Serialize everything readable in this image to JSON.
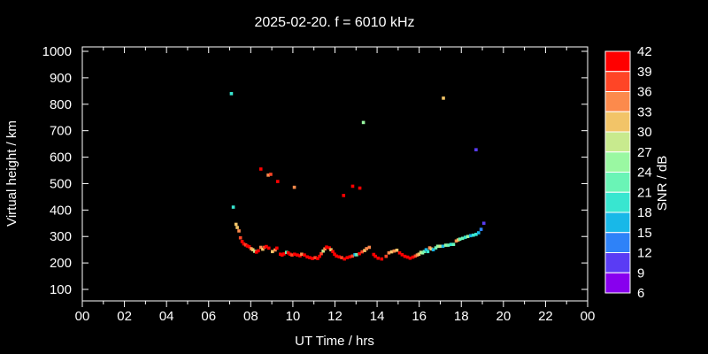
{
  "chart_data": {
    "type": "scatter",
    "title": "2025-02-20. f = 6010 kHz",
    "xlabel": "UT Time / hrs",
    "ylabel": "Virtual height / km",
    "xlim": [
      0,
      24
    ],
    "ylim": [
      100,
      1000
    ],
    "grid": false,
    "x_major_tick_hours": [
      0,
      2,
      4,
      6,
      8,
      10,
      12,
      14,
      16,
      18,
      20,
      22,
      24
    ],
    "x_major_tick_labels": [
      "00",
      "02",
      "04",
      "06",
      "08",
      "10",
      "12",
      "14",
      "16",
      "18",
      "20",
      "22",
      "00"
    ],
    "x_minor_step_hours": 1,
    "y_tick_km": [
      100,
      200,
      300,
      400,
      500,
      600,
      700,
      800,
      900,
      1000
    ],
    "y_tick_labels": [
      "100",
      "200",
      "300",
      "400",
      "500",
      "600",
      "700",
      "800",
      "900",
      "1000"
    ],
    "colorbar": {
      "label": "SNR / dB",
      "min": 6,
      "max": 42,
      "step": 3,
      "tick_labels_top_to_bottom": [
        "42",
        "39",
        "36",
        "33",
        "30",
        "27",
        "24",
        "21",
        "18",
        "15",
        "12",
        "9",
        "6"
      ],
      "bin_colors_low_to_high": [
        "#8800ee",
        "#5a3cf4",
        "#2e82f8",
        "#18b8e8",
        "#38e6d0",
        "#6af4b6",
        "#9af8a2",
        "#c8ea8e",
        "#f2c468",
        "#fc8a4c",
        "#ff4526",
        "#ff0000"
      ]
    },
    "points_format": [
      "ut_hours",
      "virtual_height_km",
      "snr_db"
    ],
    "points": [
      [
        7.08,
        840,
        20
      ],
      [
        17.15,
        823,
        31
      ],
      [
        13.35,
        731,
        25
      ],
      [
        18.7,
        628,
        11
      ],
      [
        8.48,
        555,
        40
      ],
      [
        8.83,
        532,
        35
      ],
      [
        8.95,
        535,
        38
      ],
      [
        9.28,
        508,
        40
      ],
      [
        10.07,
        486,
        34
      ],
      [
        12.41,
        455,
        40
      ],
      [
        12.84,
        490,
        41
      ],
      [
        13.18,
        483,
        40
      ],
      [
        7.17,
        411,
        19
      ],
      [
        7.3,
        346,
        31
      ],
      [
        7.36,
        334,
        31
      ],
      [
        7.44,
        321,
        34
      ],
      [
        7.51,
        295,
        37
      ],
      [
        7.59,
        281,
        40
      ],
      [
        7.67,
        272,
        41
      ],
      [
        7.76,
        268,
        38
      ],
      [
        7.84,
        264,
        40
      ],
      [
        7.93,
        261,
        39
      ],
      [
        8.02,
        254,
        35
      ],
      [
        8.1,
        250,
        31
      ],
      [
        8.19,
        244,
        28
      ],
      [
        8.27,
        241,
        40
      ],
      [
        8.36,
        246,
        40
      ],
      [
        8.48,
        259,
        35
      ],
      [
        8.57,
        252,
        31
      ],
      [
        8.65,
        259,
        36
      ],
      [
        8.74,
        262,
        40
      ],
      [
        8.86,
        256,
        40
      ],
      [
        9.03,
        243,
        31
      ],
      [
        9.16,
        249,
        35
      ],
      [
        9.24,
        256,
        40
      ],
      [
        9.41,
        233,
        40
      ],
      [
        9.49,
        230,
        41
      ],
      [
        9.58,
        234,
        40
      ],
      [
        9.7,
        240,
        22
      ],
      [
        9.78,
        238,
        40
      ],
      [
        9.87,
        233,
        40
      ],
      [
        9.96,
        230,
        37
      ],
      [
        10.08,
        233,
        40
      ],
      [
        10.21,
        230,
        41
      ],
      [
        10.34,
        227,
        40
      ],
      [
        10.42,
        233,
        35
      ],
      [
        10.55,
        230,
        40
      ],
      [
        10.68,
        223,
        41
      ],
      [
        10.8,
        220,
        40
      ],
      [
        10.93,
        217,
        40
      ],
      [
        11.06,
        220,
        38
      ],
      [
        11.18,
        217,
        40
      ],
      [
        11.27,
        225,
        40
      ],
      [
        11.35,
        235,
        37
      ],
      [
        11.44,
        245,
        28
      ],
      [
        11.52,
        253,
        34
      ],
      [
        11.6,
        260,
        40
      ],
      [
        11.73,
        257,
        40
      ],
      [
        11.81,
        250,
        31
      ],
      [
        11.9,
        243,
        40
      ],
      [
        11.98,
        233,
        40
      ],
      [
        12.07,
        226,
        40
      ],
      [
        12.2,
        223,
        40
      ],
      [
        12.32,
        220,
        37
      ],
      [
        12.45,
        215,
        40
      ],
      [
        12.58,
        220,
        40
      ],
      [
        12.71,
        223,
        40
      ],
      [
        12.83,
        226,
        37
      ],
      [
        12.95,
        231,
        17
      ],
      [
        13.03,
        231,
        22
      ],
      [
        13.16,
        235,
        40
      ],
      [
        13.29,
        242,
        37
      ],
      [
        13.41,
        247,
        31
      ],
      [
        13.5,
        254,
        34
      ],
      [
        13.63,
        259,
        34
      ],
      [
        13.84,
        232,
        40
      ],
      [
        13.92,
        225,
        40
      ],
      [
        14.05,
        218,
        40
      ],
      [
        14.22,
        215,
        40
      ],
      [
        14.43,
        225,
        37
      ],
      [
        14.56,
        238,
        34
      ],
      [
        14.69,
        242,
        31
      ],
      [
        14.81,
        245,
        34
      ],
      [
        14.94,
        248,
        31
      ],
      [
        15.07,
        238,
        40
      ],
      [
        15.19,
        231,
        40
      ],
      [
        15.32,
        225,
        40
      ],
      [
        15.45,
        222,
        41
      ],
      [
        15.57,
        218,
        40
      ],
      [
        15.7,
        222,
        40
      ],
      [
        15.82,
        226,
        37
      ],
      [
        15.91,
        230,
        34
      ],
      [
        15.99,
        233,
        31
      ],
      [
        16.08,
        240,
        28
      ],
      [
        16.16,
        238,
        25
      ],
      [
        16.24,
        243,
        23
      ],
      [
        16.33,
        250,
        17
      ],
      [
        16.41,
        243,
        19
      ],
      [
        16.5,
        257,
        34
      ],
      [
        16.58,
        253,
        31
      ],
      [
        16.67,
        250,
        16
      ],
      [
        16.79,
        257,
        22
      ],
      [
        16.88,
        263,
        25
      ],
      [
        17.0,
        263,
        27
      ],
      [
        17.13,
        263,
        17
      ],
      [
        17.26,
        267,
        25
      ],
      [
        17.38,
        267,
        22
      ],
      [
        17.51,
        270,
        19
      ],
      [
        17.63,
        270,
        23
      ],
      [
        17.76,
        283,
        34
      ],
      [
        17.85,
        287,
        30
      ],
      [
        17.93,
        290,
        22
      ],
      [
        18.06,
        293,
        23
      ],
      [
        18.19,
        297,
        19
      ],
      [
        18.31,
        300,
        24
      ],
      [
        18.44,
        303,
        17
      ],
      [
        18.57,
        305,
        20
      ],
      [
        18.7,
        308,
        19
      ],
      [
        18.82,
        314,
        16
      ],
      [
        18.94,
        327,
        13
      ],
      [
        19.07,
        350,
        10
      ]
    ]
  }
}
